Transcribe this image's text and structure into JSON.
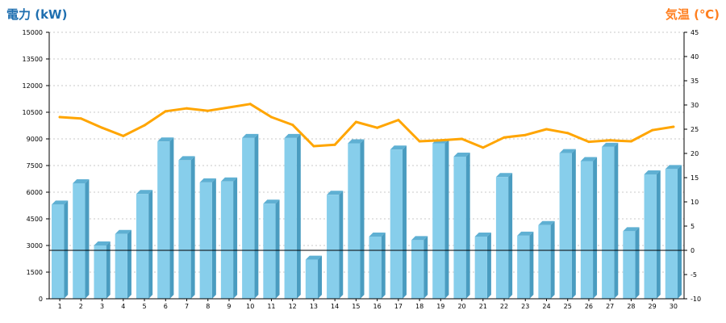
{
  "chart_data": {
    "type": "bar",
    "left_axis_title": "電力 (kW)",
    "right_axis_title": "気温 (℃)",
    "categories": [
      "1",
      "2",
      "3",
      "4",
      "5",
      "6",
      "7",
      "8",
      "9",
      "10",
      "11",
      "12",
      "13",
      "14",
      "15",
      "16",
      "17",
      "18",
      "19",
      "20",
      "21",
      "22",
      "23",
      "24",
      "25",
      "26",
      "27",
      "28",
      "29",
      "30"
    ],
    "series": [
      {
        "axis": "left",
        "type": "bar",
        "values": [
          5300,
          6500,
          3000,
          3650,
          5900,
          8850,
          7800,
          6550,
          6600,
          9050,
          5350,
          9050,
          2200,
          5850,
          8750,
          3500,
          8400,
          3300,
          8750,
          8000,
          3500,
          6850,
          3550,
          4150,
          8200,
          7750,
          8550,
          3800,
          7000,
          7300
        ],
        "color": "#87ceeb"
      },
      {
        "axis": "right",
        "type": "line",
        "values": [
          27.5,
          27.2,
          25.3,
          23.6,
          25.8,
          28.7,
          29.3,
          28.8,
          29.5,
          30.2,
          27.5,
          25.9,
          21.5,
          21.8,
          26.5,
          25.3,
          26.9,
          22.5,
          22.7,
          23.0,
          21.2,
          23.3,
          23.8,
          25.0,
          24.2,
          22.4,
          22.7,
          22.5,
          24.8,
          25.5
        ],
        "color": "#ffa500"
      }
    ],
    "ylim_left": [
      0,
      15000
    ],
    "yticks_left": [
      "0",
      "1500",
      "3000",
      "4500",
      "6000",
      "7500",
      "9000",
      "10500",
      "12000",
      "13500",
      "15000"
    ],
    "ylim_right": [
      -10,
      45
    ],
    "yticks_right": [
      "-10",
      "-5",
      "0",
      "5",
      "10",
      "15",
      "20",
      "25",
      "30",
      "35",
      "40",
      "45"
    ],
    "reference_line": {
      "axis": "right",
      "value": 0
    },
    "grid": true,
    "legend": "none"
  }
}
